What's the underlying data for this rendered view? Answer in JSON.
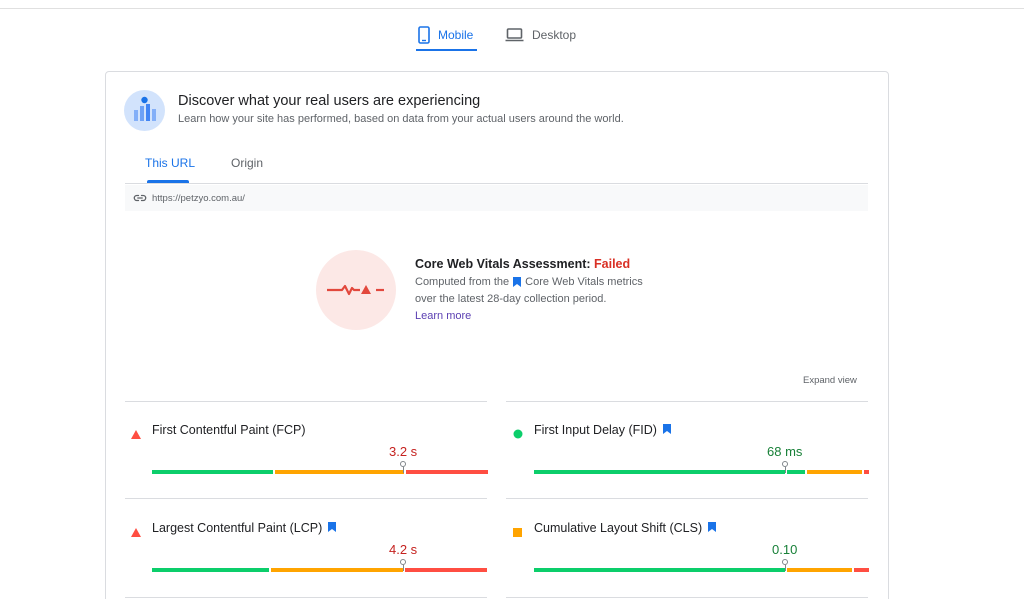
{
  "device_tabs": {
    "mobile": "Mobile",
    "desktop": "Desktop"
  },
  "header": {
    "title": "Discover what your real users are experiencing",
    "subtitle": "Learn how your site has performed, based on data from your actual users around the world."
  },
  "scope_tabs": {
    "this_url": "This URL",
    "origin": "Origin"
  },
  "url": "https://petzyo.com.au/",
  "assessment": {
    "title_prefix": "Core Web Vitals Assessment: ",
    "status": "Failed",
    "desc_prefix": "Computed from the",
    "desc_suffix": "Core Web Vitals metrics",
    "desc_line2": "over the latest 28-day collection period.",
    "learn_more": "Learn more"
  },
  "expand_view": "Expand view",
  "metrics": [
    {
      "label": "First Contentful Paint (FCP)",
      "value": "3.2 s",
      "status": "poor",
      "core_vital": false,
      "bar_ratios": [
        0.36,
        0.39,
        0.25
      ],
      "marker": 0.75
    },
    {
      "label": "First Input Delay (FID)",
      "value": "68 ms",
      "status": "good",
      "core_vital": true,
      "bar_ratios": [
        0.75,
        0.06,
        0.17,
        0.02
      ],
      "marker": 0.75
    },
    {
      "label": "Largest Contentful Paint (LCP)",
      "value": "4.2 s",
      "status": "poor",
      "core_vital": true,
      "bar_ratios": [
        0.35,
        0.4,
        0.25
      ],
      "marker": 0.75
    },
    {
      "label": "Cumulative Layout Shift (CLS)",
      "value": "0.10",
      "status": "good",
      "core_vital": true,
      "bar_ratios": [
        0.75,
        0.2,
        0.05
      ],
      "marker": 0.75
    }
  ],
  "colors": {
    "accent": "#1a73e8",
    "good": "#0cce6b",
    "good_text": "#188038",
    "average": "#ffa400",
    "poor": "#ff4e42",
    "poor_text": "#c5221f"
  }
}
